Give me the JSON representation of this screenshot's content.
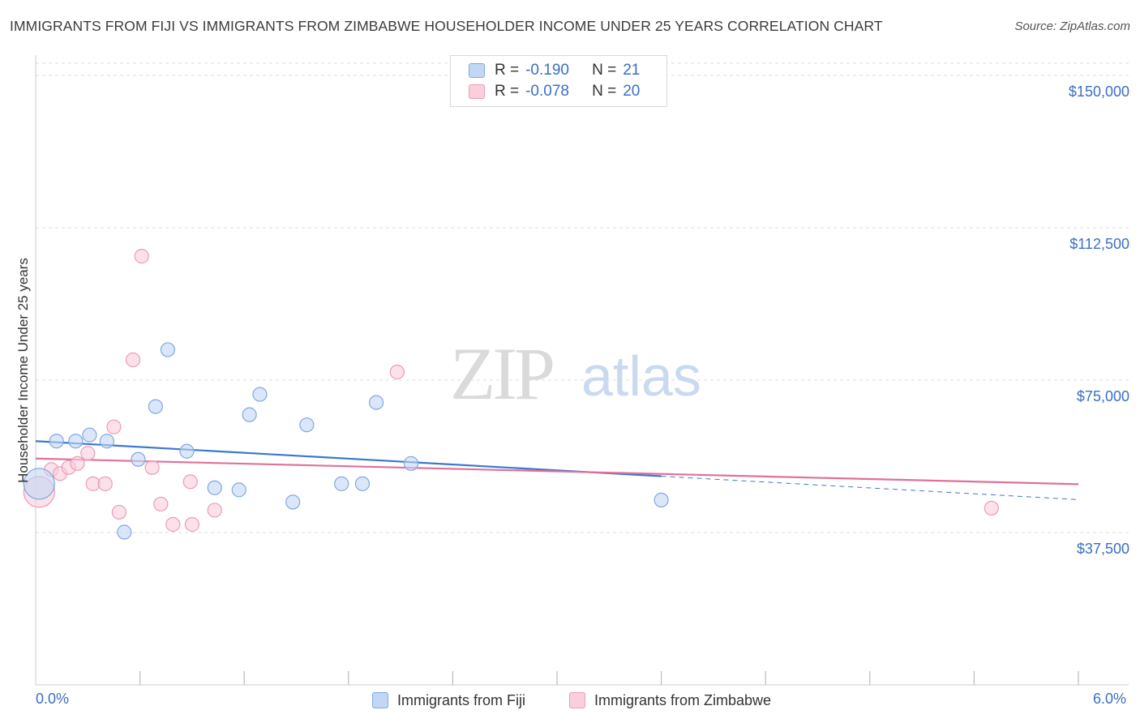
{
  "title": "IMMIGRANTS FROM FIJI VS IMMIGRANTS FROM ZIMBABWE HOUSEHOLDER INCOME UNDER 25 YEARS CORRELATION CHART",
  "source": "Source: ZipAtlas.com",
  "watermark": {
    "zip": "ZIP",
    "atlas": "atlas"
  },
  "legend": {
    "fiji": {
      "r_label": "R =",
      "r_value": "-0.190",
      "n_label": "N =",
      "n_value": "21"
    },
    "zimbabwe": {
      "r_label": "R =",
      "r_value": "-0.078",
      "n_label": "N =",
      "n_value": "20"
    }
  },
  "colors": {
    "fiji_fill": "#c3d7f5",
    "fiji_stroke": "#7fa8e0",
    "fiji_line": "#3a78d0",
    "zim_fill": "#f9cfdc",
    "zim_stroke": "#ee9ab5",
    "zim_line": "#e0709a",
    "grid": "#dcdcdc",
    "axis_text": "#3a6fc4"
  },
  "chart_data": {
    "type": "scatter",
    "title": "IMMIGRANTS FROM FIJI VS IMMIGRANTS FROM ZIMBABWE HOUSEHOLDER INCOME UNDER 25 YEARS CORRELATION CHART",
    "xlabel": "",
    "ylabel": "Householder Income Under 25 years",
    "xlim": [
      0.0,
      6.0
    ],
    "ylim": [
      0,
      153000
    ],
    "x_tick_labels": [
      "0.0%",
      "6.0%"
    ],
    "y_ticks": [
      {
        "value": 37500,
        "label": "$37,500"
      },
      {
        "value": 75000,
        "label": "$75,000"
      },
      {
        "value": 112500,
        "label": "$112,500"
      },
      {
        "value": 150000,
        "label": "$150,000"
      }
    ],
    "series": [
      {
        "name": "Immigrants from Fiji",
        "color": "#7fa8e0",
        "points": [
          [
            0.02,
            49500,
            "large"
          ],
          [
            0.12,
            60000
          ],
          [
            0.23,
            60000
          ],
          [
            0.31,
            61500
          ],
          [
            0.41,
            60000
          ],
          [
            0.51,
            37600
          ],
          [
            0.59,
            55500
          ],
          [
            0.69,
            68500
          ],
          [
            0.76,
            82500
          ],
          [
            0.87,
            57500
          ],
          [
            1.03,
            48500
          ],
          [
            1.17,
            48000
          ],
          [
            1.23,
            66500
          ],
          [
            1.29,
            71500
          ],
          [
            1.48,
            45000
          ],
          [
            1.56,
            64000
          ],
          [
            1.76,
            49500
          ],
          [
            1.88,
            49500
          ],
          [
            1.96,
            69500
          ],
          [
            2.16,
            54500
          ],
          [
            3.6,
            45500
          ]
        ],
        "trend": {
          "x0": 0.0,
          "y0": 60000,
          "x_solid_end": 3.6,
          "x_end": 6.0,
          "y_end": 45600
        }
      },
      {
        "name": "Immigrants from Zimbabwe",
        "color": "#ee9ab5",
        "points": [
          [
            0.02,
            47500,
            "large"
          ],
          [
            0.09,
            53000
          ],
          [
            0.14,
            52000
          ],
          [
            0.19,
            53500
          ],
          [
            0.24,
            54500
          ],
          [
            0.3,
            57000
          ],
          [
            0.33,
            49500
          ],
          [
            0.4,
            49500
          ],
          [
            0.45,
            63500
          ],
          [
            0.48,
            42500
          ],
          [
            0.56,
            80000
          ],
          [
            0.61,
            105500
          ],
          [
            0.67,
            53500
          ],
          [
            0.72,
            44500
          ],
          [
            0.79,
            39500
          ],
          [
            0.89,
            50000
          ],
          [
            0.9,
            39500
          ],
          [
            1.03,
            43000
          ],
          [
            2.08,
            77000
          ],
          [
            5.5,
            43500
          ]
        ],
        "trend": {
          "x0": 0.0,
          "y0": 55700,
          "x_end": 6.0,
          "y_end": 49400
        }
      }
    ]
  },
  "bottom_legend": {
    "fiji_label": "Immigrants from Fiji",
    "zimbabwe_label": "Immigrants from Zimbabwe"
  }
}
